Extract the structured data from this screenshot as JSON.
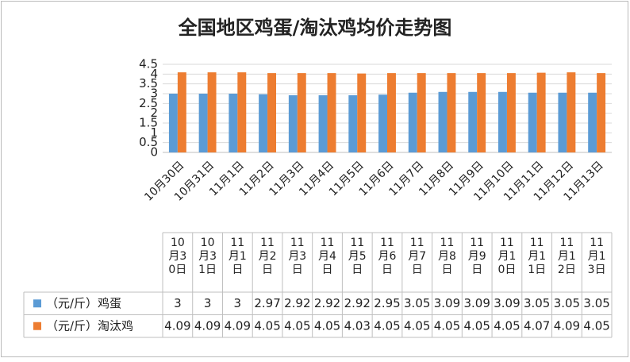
{
  "chart_data": {
    "type": "bar",
    "title": "全国地区鸡蛋/淘汰鸡均价走势图",
    "categories": [
      "10月30日",
      "10月31日",
      "11月1日",
      "11月2日",
      "11月3日",
      "11月4日",
      "11月5日",
      "11月6日",
      "11月7日",
      "11月8日",
      "11月9日",
      "11月10日",
      "11月11日",
      "11月12日",
      "11月13日"
    ],
    "series": [
      {
        "name": "（元/斤）鸡蛋",
        "color": "#5b9bd5",
        "values": [
          3,
          3,
          3,
          2.97,
          2.92,
          2.92,
          2.92,
          2.95,
          3.05,
          3.09,
          3.09,
          3.09,
          3.05,
          3.05,
          3.05
        ]
      },
      {
        "name": "（元/斤）淘汰鸡",
        "color": "#ed7d31",
        "values": [
          4.09,
          4.09,
          4.09,
          4.05,
          4.05,
          4.05,
          4.03,
          4.05,
          4.05,
          4.05,
          4.05,
          4.05,
          4.07,
          4.09,
          4.05
        ]
      }
    ],
    "ylim": [
      0,
      4.5
    ],
    "yticks": [
      0,
      0.5,
      1,
      1.5,
      2,
      2.5,
      3,
      3.5,
      4,
      4.5
    ],
    "grid": true,
    "data_table": true
  }
}
